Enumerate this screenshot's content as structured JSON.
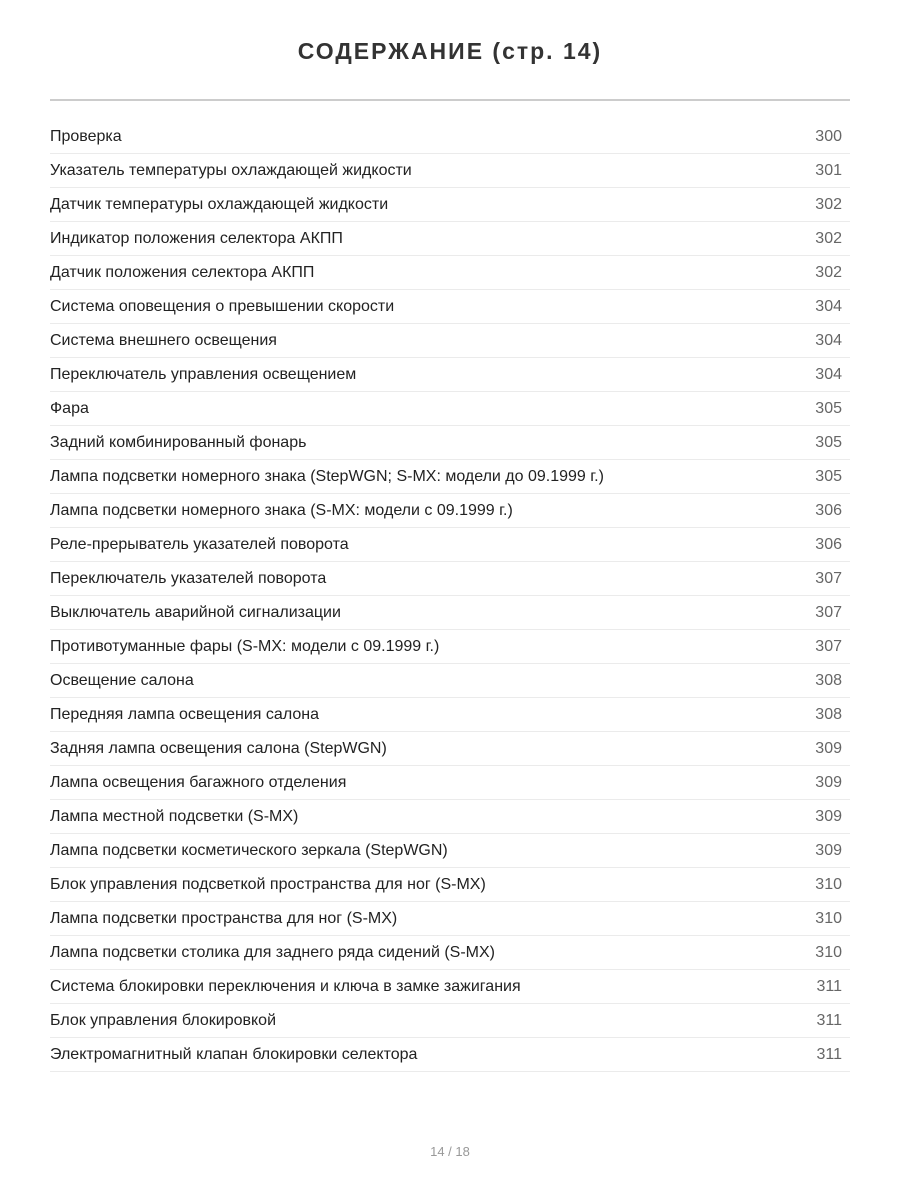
{
  "title": "СОДЕРЖАНИЕ (стр. 14)",
  "entries": [
    {
      "label": "Проверка",
      "page": "300"
    },
    {
      "label": "Указатель температуры охлаждающей жидкости",
      "page": "301"
    },
    {
      "label": "Датчик температуры охлаждающей жидкости",
      "page": "302"
    },
    {
      "label": "Индикатор положения селектора АКПП",
      "page": "302"
    },
    {
      "label": "Датчик положения селектора АКПП",
      "page": "302"
    },
    {
      "label": "Система оповещения о превышении скорости",
      "page": "304"
    },
    {
      "label": "Система внешнего освещения",
      "page": "304"
    },
    {
      "label": "Переключатель управления освещением",
      "page": "304"
    },
    {
      "label": "Фара",
      "page": "305"
    },
    {
      "label": "Задний комбинированный фонарь",
      "page": "305"
    },
    {
      "label": "Лампа подсветки номерного знака (StepWGN; S-MX: модели до 09.1999 г.)",
      "page": "305"
    },
    {
      "label": "Лампа подсветки номерного знака (S-MX: модели с 09.1999 г.)",
      "page": "306"
    },
    {
      "label": "Реле-прерыватель указателей поворота",
      "page": "306"
    },
    {
      "label": "Переключатель указателей поворота",
      "page": "307"
    },
    {
      "label": "Выключатель аварийной сигнализации",
      "page": "307"
    },
    {
      "label": "Противотуманные фары (S-MX: модели с 09.1999 г.)",
      "page": "307"
    },
    {
      "label": "Освещение салона",
      "page": "308"
    },
    {
      "label": "Передняя лампа освещения салона",
      "page": "308"
    },
    {
      "label": "Задняя лампа освещения салона (StepWGN)",
      "page": "309"
    },
    {
      "label": "Лампа освещения багажного отделения",
      "page": "309"
    },
    {
      "label": "Лампа местной подсветки (S-MX)",
      "page": "309"
    },
    {
      "label": "Лампа подсветки косметического зеркала (StepWGN)",
      "page": "309"
    },
    {
      "label": "Блок управления подсветкой пространства для ног (S-MX)",
      "page": "310"
    },
    {
      "label": "Лампа подсветки пространства для ног (S-MX)",
      "page": "310"
    },
    {
      "label": "Лампа подсветки столика для заднего ряда сидений (S-MX)",
      "page": "310"
    },
    {
      "label": "Система блокировки переключения и ключа в замке зажигания",
      "page": "311"
    },
    {
      "label": "Блок управления блокировкой",
      "page": "311"
    },
    {
      "label": "Электромагнитный клапан блокировки селектора",
      "page": "311"
    }
  ],
  "footer": "14 / 18"
}
